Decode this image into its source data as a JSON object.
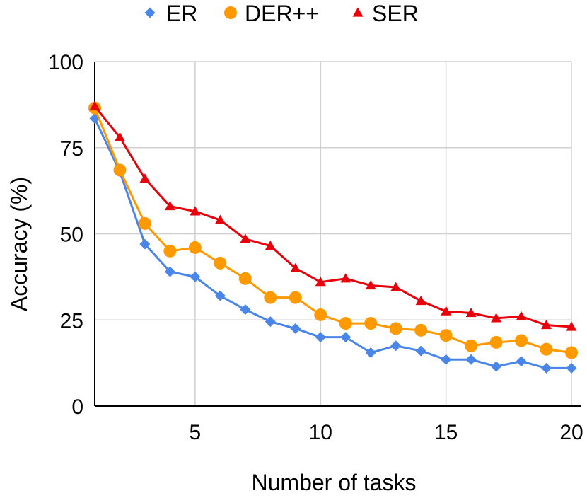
{
  "chart_data": {
    "type": "line",
    "title": "",
    "xlabel": "Number of tasks",
    "ylabel": "Accuracy (%)",
    "xlim": [
      1,
      20
    ],
    "ylim": [
      0,
      100
    ],
    "x_ticks": [
      5,
      10,
      15,
      20
    ],
    "y_ticks": [
      0,
      25,
      50,
      75,
      100
    ],
    "grid": true,
    "legend_position": "top",
    "x": [
      1,
      2,
      3,
      4,
      5,
      6,
      7,
      8,
      9,
      10,
      11,
      12,
      13,
      14,
      15,
      16,
      17,
      18,
      19,
      20
    ],
    "series": [
      {
        "name": "ER",
        "color": "#4A86E8",
        "marker": "diamond",
        "values": [
          83.5,
          68,
          47,
          39,
          37.5,
          32,
          28,
          24.5,
          22.5,
          20,
          20,
          15.5,
          17.5,
          16,
          13.5,
          13.5,
          11.5,
          13,
          11,
          11
        ]
      },
      {
        "name": "DER++",
        "color": "#FF9900",
        "marker": "circle",
        "values": [
          86.5,
          68.5,
          53,
          45,
          46,
          41.5,
          37,
          31.5,
          31.5,
          26.5,
          24,
          24,
          22.5,
          22,
          20.5,
          17.5,
          18.5,
          19,
          16.5,
          15.5
        ]
      },
      {
        "name": "SER",
        "color": "#E8000B",
        "marker": "triangle",
        "values": [
          87,
          78,
          66,
          58,
          56.5,
          54,
          48.5,
          46.5,
          40,
          36,
          37,
          35,
          34.5,
          30.5,
          27.5,
          27,
          25.5,
          26,
          23.5,
          23
        ]
      }
    ]
  }
}
